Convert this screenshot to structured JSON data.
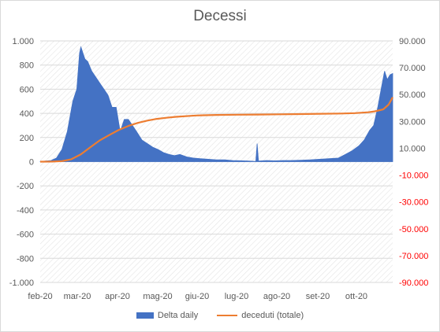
{
  "chart_data": {
    "type": "area",
    "title": "Decessi",
    "categories": [
      "feb-20",
      "mar-20",
      "apr-20",
      "mag-20",
      "giu-20",
      "lug-20",
      "ago-20",
      "set-20",
      "ott-20"
    ],
    "x_start_label": "feb-20",
    "left_axis": {
      "ylim": [
        -1000,
        1000
      ],
      "ticks": [
        "-1.000",
        "-800",
        "-600",
        "-400",
        "-200",
        "0",
        "200",
        "400",
        "600",
        "800",
        "1.000"
      ]
    },
    "right_axis": {
      "ylim": [
        -90000,
        90000
      ],
      "ticks": [
        "-90.000",
        "-70.000",
        "-50.000",
        "-30.000",
        "-10.000",
        "10.000",
        "30.000",
        "50.000",
        "70.000",
        "90.000"
      ],
      "negative_color": "#ff0000"
    },
    "series": [
      {
        "name": "Delta daily",
        "type": "area",
        "axis": "left",
        "color": "#4472c4",
        "x": [
          "2020-02-21",
          "2020-02-25",
          "2020-02-29",
          "2020-03-04",
          "2020-03-08",
          "2020-03-12",
          "2020-03-16",
          "2020-03-19",
          "2020-03-21",
          "2020-03-22",
          "2020-03-25",
          "2020-03-27",
          "2020-03-30",
          "2020-04-02",
          "2020-04-05",
          "2020-04-08",
          "2020-04-11",
          "2020-04-14",
          "2020-04-17",
          "2020-04-20",
          "2020-04-23",
          "2020-04-26",
          "2020-04-29",
          "2020-05-02",
          "2020-05-06",
          "2020-05-10",
          "2020-05-14",
          "2020-05-18",
          "2020-05-22",
          "2020-05-26",
          "2020-05-30",
          "2020-06-03",
          "2020-06-08",
          "2020-06-13",
          "2020-06-18",
          "2020-06-24",
          "2020-06-30",
          "2020-07-06",
          "2020-07-12",
          "2020-07-18",
          "2020-07-24",
          "2020-07-29",
          "2020-07-30",
          "2020-07-31",
          "2020-08-06",
          "2020-08-12",
          "2020-08-18",
          "2020-08-24",
          "2020-08-31",
          "2020-09-07",
          "2020-09-14",
          "2020-09-21",
          "2020-09-28",
          "2020-10-03",
          "2020-10-08",
          "2020-10-13",
          "2020-10-17",
          "2020-10-21",
          "2020-10-24",
          "2020-10-27",
          "2020-10-30",
          "2020-11-01",
          "2020-11-03",
          "2020-11-05",
          "2020-11-07"
        ],
        "values": [
          1,
          5,
          10,
          30,
          100,
          250,
          500,
          600,
          900,
          950,
          850,
          830,
          750,
          700,
          650,
          600,
          550,
          450,
          450,
          250,
          350,
          350,
          300,
          250,
          180,
          150,
          120,
          100,
          75,
          60,
          50,
          60,
          40,
          30,
          25,
          20,
          15,
          15,
          10,
          8,
          5,
          2,
          150,
          5,
          10,
          7,
          10,
          10,
          12,
          15,
          20,
          25,
          30,
          60,
          90,
          130,
          180,
          260,
          300,
          450,
          630,
          750,
          680,
          720,
          730
        ]
      },
      {
        "name": "deceduti (totale)",
        "type": "line",
        "axis": "right",
        "color": "#ed7d31",
        "x": [
          "2020-02-21",
          "2020-03-01",
          "2020-03-08",
          "2020-03-15",
          "2020-03-22",
          "2020-03-29",
          "2020-04-05",
          "2020-04-12",
          "2020-04-19",
          "2020-04-26",
          "2020-05-03",
          "2020-05-10",
          "2020-05-17",
          "2020-05-24",
          "2020-05-31",
          "2020-06-15",
          "2020-06-30",
          "2020-07-15",
          "2020-07-31",
          "2020-08-15",
          "2020-08-31",
          "2020-09-15",
          "2020-09-30",
          "2020-10-10",
          "2020-10-20",
          "2020-10-25",
          "2020-10-31",
          "2020-11-04",
          "2020-11-07"
        ],
        "values": [
          0,
          40,
          400,
          1800,
          5500,
          10800,
          15900,
          19900,
          23700,
          26600,
          28900,
          30600,
          31900,
          32700,
          33400,
          34400,
          34800,
          35000,
          35100,
          35300,
          35500,
          35700,
          35900,
          36200,
          36800,
          37500,
          39000,
          42500,
          48000
        ]
      }
    ],
    "legend": "bottom",
    "grid": true
  }
}
